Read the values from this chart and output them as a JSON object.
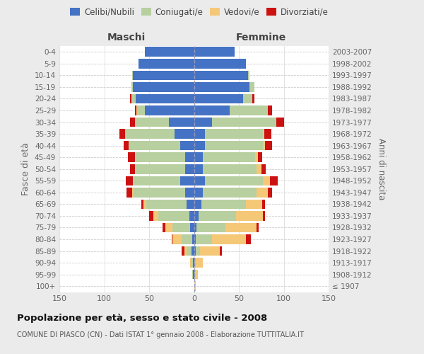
{
  "age_groups": [
    "100+",
    "95-99",
    "90-94",
    "85-89",
    "80-84",
    "75-79",
    "70-74",
    "65-69",
    "60-64",
    "55-59",
    "50-54",
    "45-49",
    "40-44",
    "35-39",
    "30-34",
    "25-29",
    "20-24",
    "15-19",
    "10-14",
    "5-9",
    "0-4"
  ],
  "birth_years": [
    "≤ 1907",
    "1908-1912",
    "1913-1917",
    "1918-1922",
    "1923-1927",
    "1928-1932",
    "1933-1937",
    "1938-1942",
    "1943-1947",
    "1948-1952",
    "1953-1957",
    "1958-1962",
    "1963-1967",
    "1968-1972",
    "1973-1977",
    "1978-1982",
    "1983-1987",
    "1988-1992",
    "1993-1997",
    "1998-2002",
    "2003-2007"
  ],
  "male_celibi": [
    0,
    1,
    1,
    3,
    2,
    4,
    5,
    8,
    10,
    15,
    10,
    10,
    15,
    22,
    28,
    55,
    65,
    68,
    68,
    62,
    55
  ],
  "male_coniugati": [
    0,
    1,
    2,
    5,
    12,
    20,
    35,
    45,
    57,
    52,
    55,
    55,
    58,
    55,
    38,
    8,
    5,
    2,
    1,
    0,
    0
  ],
  "male_vedovi": [
    0,
    0,
    1,
    3,
    10,
    8,
    5,
    3,
    2,
    1,
    1,
    1,
    0,
    0,
    0,
    1,
    0,
    0,
    0,
    0,
    0
  ],
  "male_divorziati": [
    0,
    0,
    0,
    3,
    1,
    3,
    5,
    3,
    6,
    8,
    5,
    8,
    5,
    6,
    5,
    2,
    1,
    0,
    0,
    0,
    0
  ],
  "female_celibi": [
    0,
    0,
    0,
    2,
    2,
    3,
    5,
    8,
    10,
    12,
    10,
    10,
    12,
    12,
    20,
    40,
    55,
    62,
    60,
    58,
    45
  ],
  "female_coniugati": [
    0,
    1,
    2,
    5,
    18,
    32,
    42,
    50,
    60,
    65,
    60,
    58,
    65,
    65,
    72,
    42,
    10,
    5,
    2,
    0,
    0
  ],
  "female_vedovi": [
    2,
    3,
    8,
    22,
    38,
    35,
    30,
    18,
    12,
    8,
    5,
    3,
    2,
    1,
    0,
    0,
    0,
    0,
    0,
    0,
    0
  ],
  "female_divorziati": [
    0,
    0,
    0,
    2,
    5,
    2,
    2,
    3,
    5,
    8,
    5,
    5,
    8,
    8,
    8,
    5,
    2,
    0,
    0,
    0,
    0
  ],
  "colors": {
    "celibi": "#4472c4",
    "coniugati": "#b8cfa0",
    "vedovi": "#f5c878",
    "divorziati": "#cc1111"
  },
  "xlim": 150,
  "title": "Popolazione per età, sesso e stato civile - 2008",
  "subtitle": "COMUNE DI PIASCO (CN) - Dati ISTAT 1° gennaio 2008 - Elaborazione TUTTITALIA.IT",
  "ylabel_left": "Fasce di età",
  "ylabel_right": "Anni di nascita",
  "xlabel_left": "Maschi",
  "xlabel_right": "Femmine",
  "bg_color": "#ebebeb",
  "plot_bg_color": "#ffffff"
}
